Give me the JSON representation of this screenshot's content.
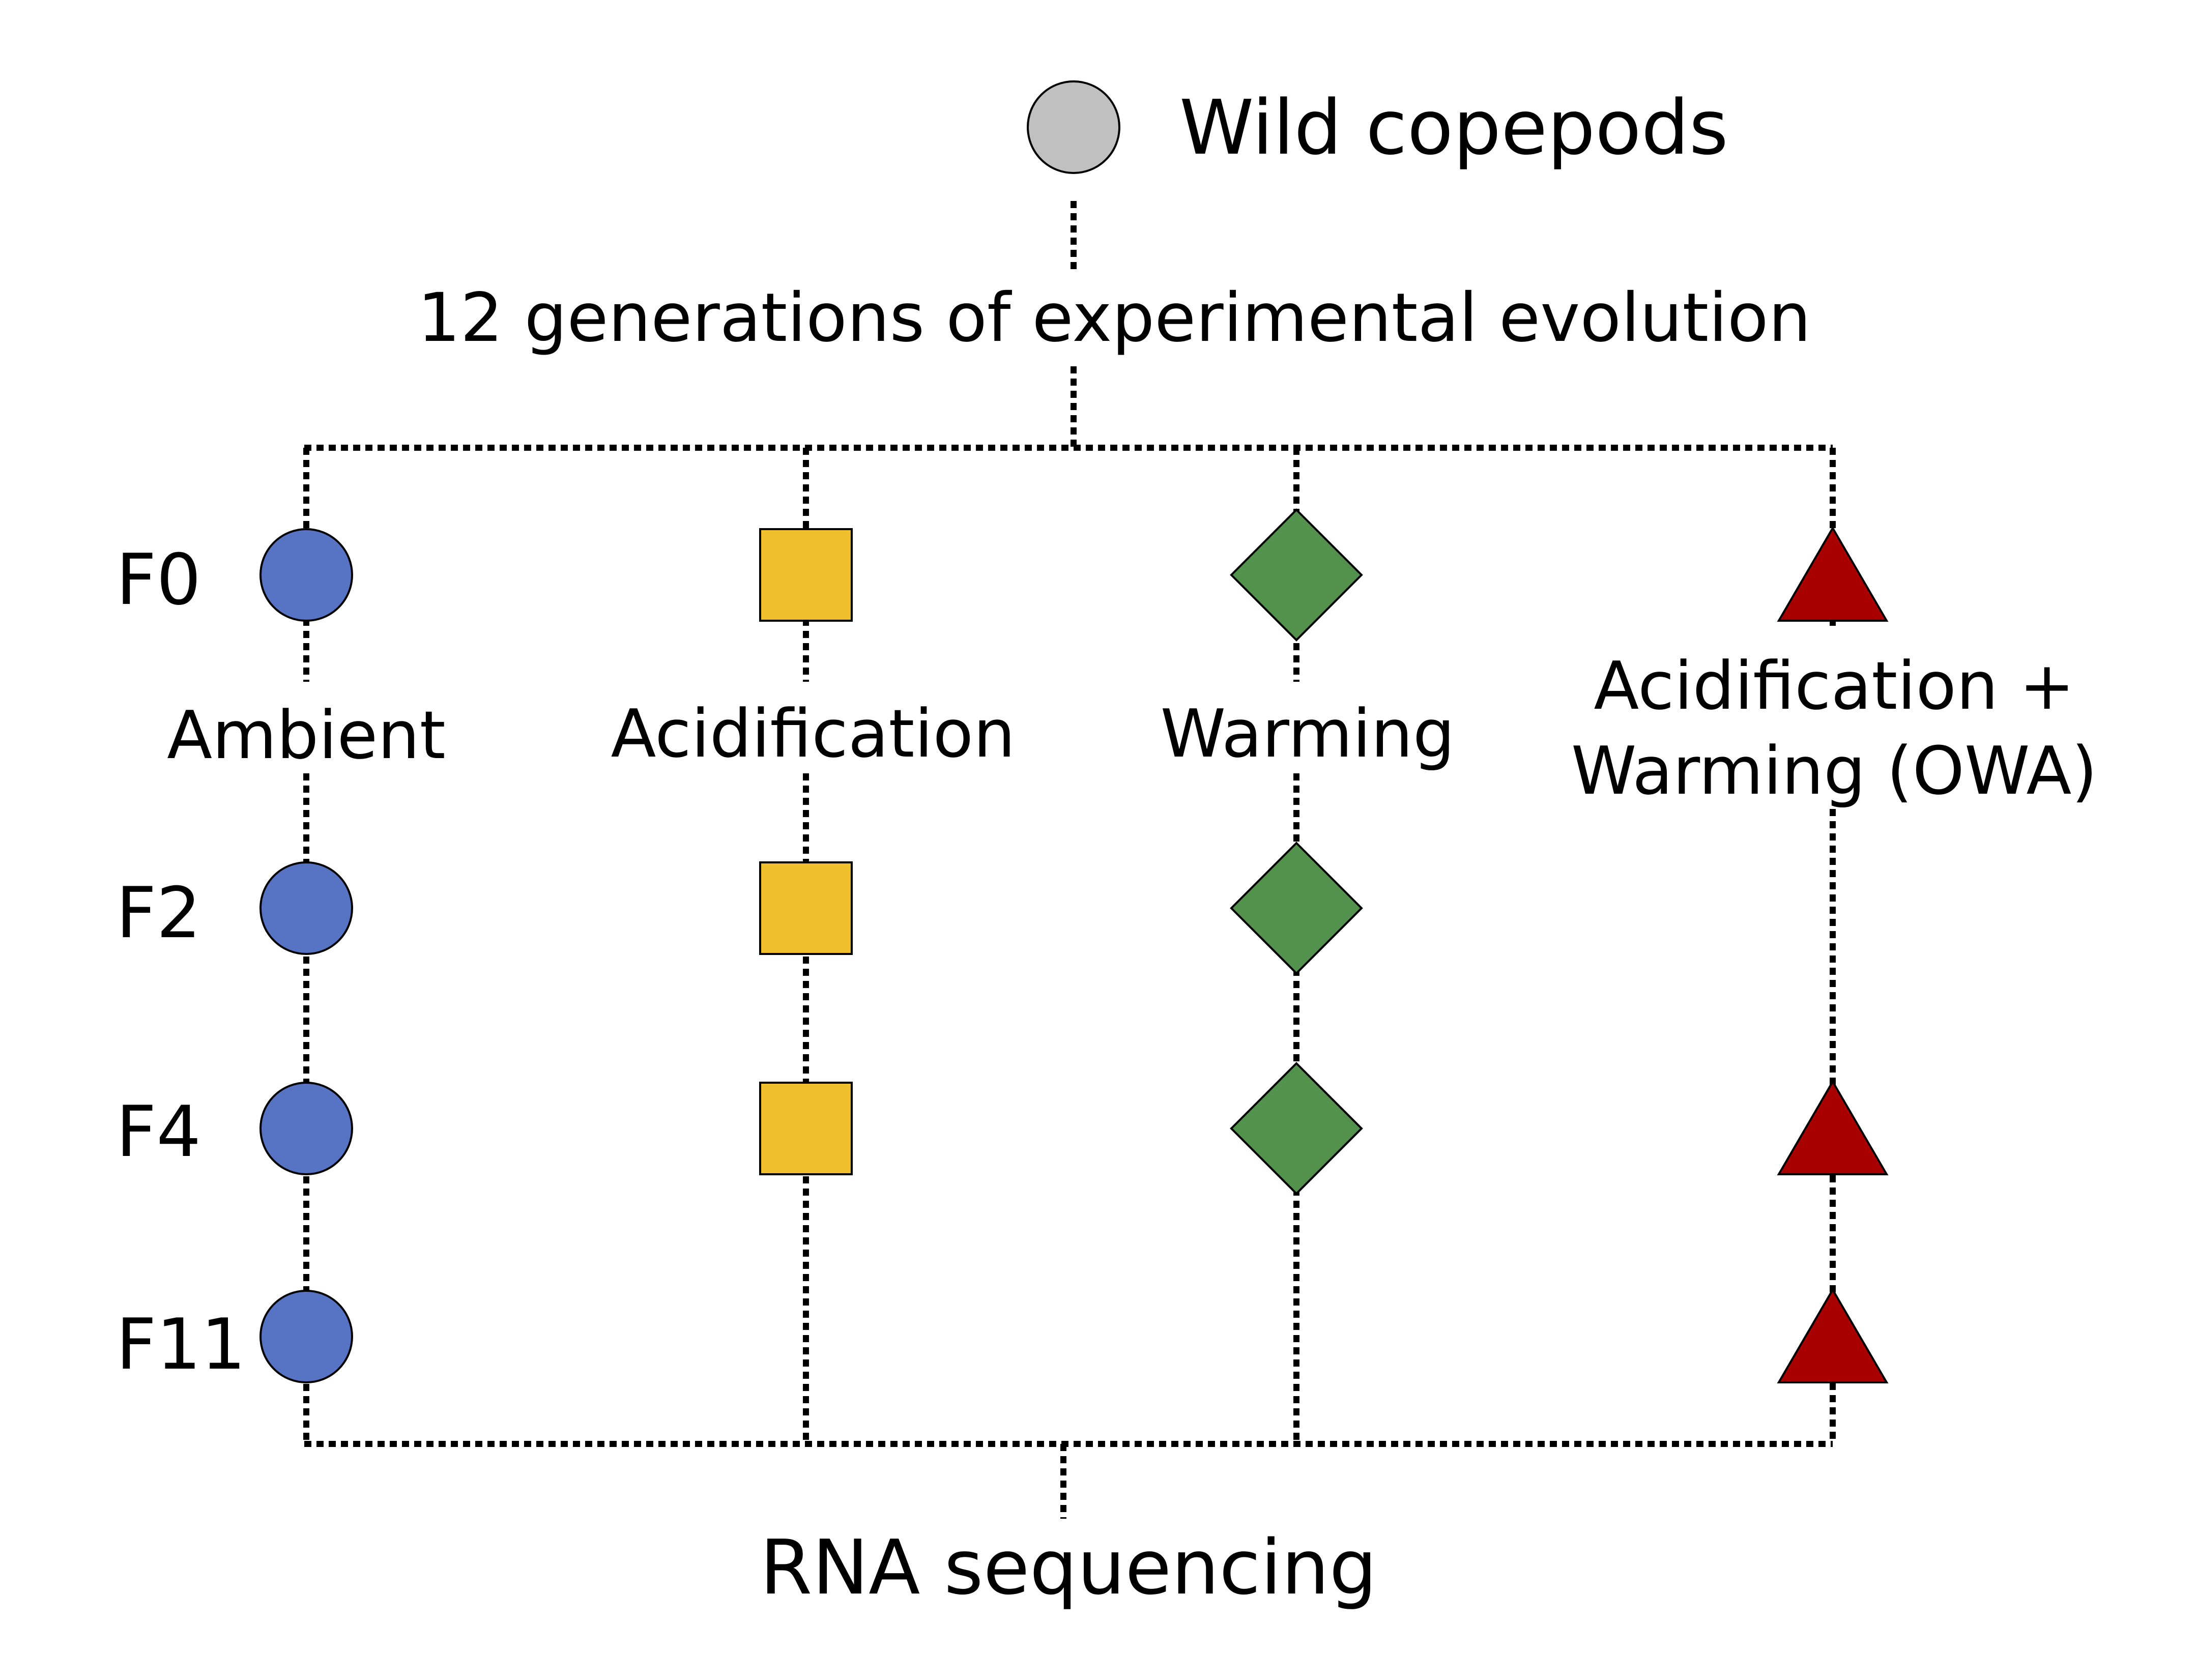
{
  "origin": {
    "label": "Wild copepods",
    "color": "#c0c0c0"
  },
  "process": {
    "label": "12 generations of experimental evolution"
  },
  "generations": [
    "F0",
    "F2",
    "F4",
    "F11"
  ],
  "treatments": [
    {
      "key": "ambient",
      "label_lines": [
        "Ambient"
      ],
      "shape": "circle",
      "color": "#5673c4",
      "sampled": [
        "F0",
        "F2",
        "F4",
        "F11"
      ]
    },
    {
      "key": "acidification",
      "label_lines": [
        "Acidification"
      ],
      "shape": "square",
      "color": "#efbf2e",
      "sampled": [
        "F0",
        "F2",
        "F4"
      ]
    },
    {
      "key": "warming",
      "label_lines": [
        "Warming"
      ],
      "shape": "diamond",
      "color": "#52924c",
      "sampled": [
        "F0",
        "F2",
        "F4"
      ]
    },
    {
      "key": "owa",
      "label_lines": [
        "Acidification +",
        "Warming (OWA)"
      ],
      "shape": "triangle",
      "color": "#a80000",
      "sampled": [
        "F0",
        "F4",
        "F11"
      ]
    }
  ],
  "outcome": {
    "label": "RNA sequencing"
  }
}
